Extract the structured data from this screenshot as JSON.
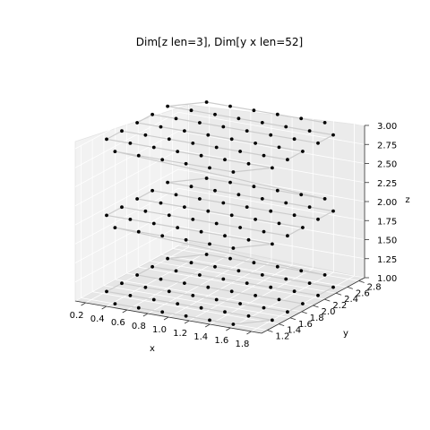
{
  "chart_data": {
    "type": "scatter",
    "subtype": "3d-scatter-with-path",
    "title": "Dim[z len=3], Dim[y x len=52]",
    "xlabel": "x",
    "ylabel": "y",
    "zlabel": "z",
    "xticks": [
      "0.2",
      "0.4",
      "0.6",
      "0.8",
      "1.0",
      "1.2",
      "1.4",
      "1.6",
      "1.8"
    ],
    "yticks": [
      "1.2",
      "1.4",
      "1.6",
      "1.8",
      "2.0",
      "2.2",
      "2.4",
      "2.6",
      "2.8"
    ],
    "zticks": [
      "1.00",
      "1.25",
      "1.50",
      "1.75",
      "2.00",
      "2.25",
      "2.50",
      "2.75",
      "3.00"
    ],
    "xlim": [
      0.1,
      1.9
    ],
    "ylim": [
      1.1,
      2.9
    ],
    "zlim": [
      1.0,
      3.0
    ],
    "z_levels": [
      1,
      2,
      3
    ],
    "grid": {
      "x_range": [
        0.2,
        1.8
      ],
      "y_range": [
        1.2,
        2.8
      ],
      "nx": 8,
      "ny": 7,
      "points_per_layer": 52,
      "omitted_corners": "four grid corners omitted per layer"
    },
    "point_color": "#000000",
    "path_color": "#cccccc",
    "pane_color": "#f2f2f2"
  }
}
